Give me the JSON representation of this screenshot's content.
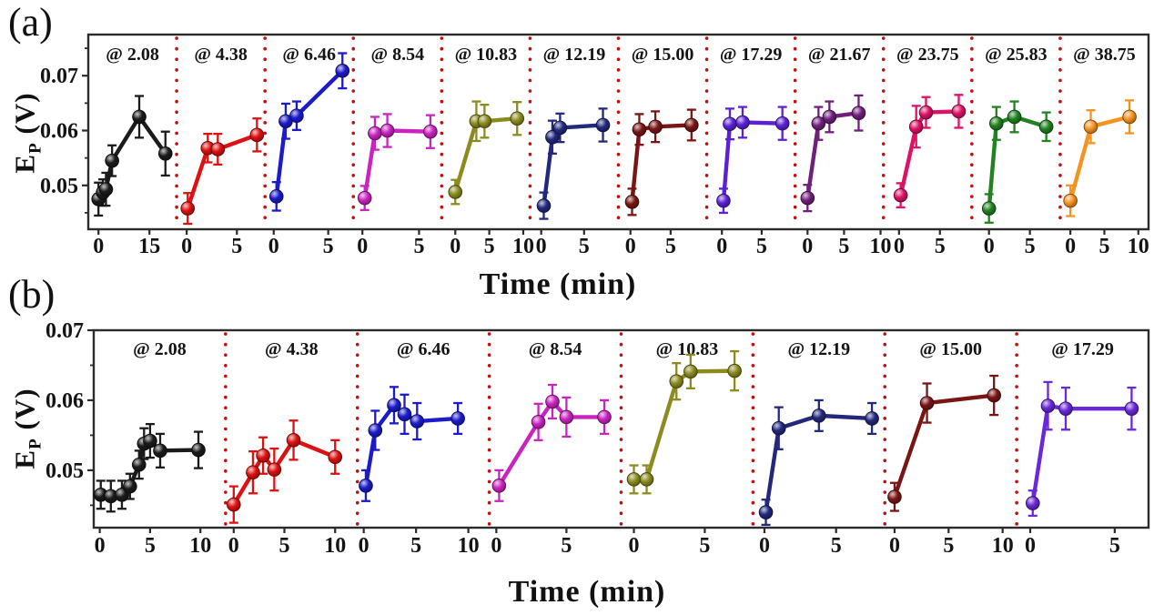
{
  "figure": {
    "panel_a_letter": "(a)",
    "panel_b_letter": "(b)"
  },
  "axis": {
    "ylabel_base": "E",
    "ylabel_sub": "P",
    "ylabel_unit": " (V)",
    "xlabel": "Time (min)"
  },
  "colors": {
    "separator": "#c01010",
    "frame": "#2b2b2b",
    "text": "#141414"
  },
  "chart_data": [
    {
      "type": "line",
      "panel": "a",
      "xlabel": "Time (min)",
      "ylabel": "E_P (V)",
      "ylim": [
        0.042,
        0.0775
      ],
      "yticks": [
        0.05,
        0.06,
        0.07
      ],
      "ytick_labels": [
        "0.05",
        "0.06",
        "0.07"
      ],
      "yticks_minor": [
        0.045,
        0.055,
        0.065,
        0.075
      ],
      "grid": false,
      "legend": "none",
      "subplots": [
        {
          "label": "@ 2.08",
          "color": "#1b1b1b",
          "xlim": [
            -3.0,
            23.0
          ],
          "xticks": [
            0,
            15
          ],
          "x": [
            0,
            1.3,
            2.2,
            4,
            12,
            19.7
          ],
          "y": [
            0.0475,
            0.0487,
            0.0493,
            0.0545,
            0.0625,
            0.0558
          ],
          "err": [
            0.003,
            0.0024,
            0.003,
            0.0028,
            0.0038,
            0.004
          ]
        },
        {
          "label": "@ 4.38",
          "color": "#dd1111",
          "xlim": [
            -1.0,
            7.8
          ],
          "xticks": [
            0,
            5
          ],
          "x": [
            0.1,
            2.1,
            3.1,
            7.0
          ],
          "y": [
            0.0458,
            0.0568,
            0.0566,
            0.0592
          ],
          "err": [
            0.0028,
            0.0026,
            0.0028,
            0.003
          ]
        },
        {
          "label": "@ 6.46",
          "color": "#1b1bcc",
          "xlim": [
            -0.8,
            7.3
          ],
          "xticks": [
            0,
            5
          ],
          "x": [
            0.25,
            1.1,
            2.1,
            6.3
          ],
          "y": [
            0.048,
            0.0617,
            0.0627,
            0.0709
          ],
          "err": [
            0.0026,
            0.0032,
            0.0026,
            0.0032
          ]
        },
        {
          "label": "@ 8.54",
          "color": "#c924c0",
          "xlim": [
            -0.8,
            7.0
          ],
          "xticks": [
            0,
            5
          ],
          "x": [
            0.2,
            1.1,
            2.2,
            6.0
          ],
          "y": [
            0.0477,
            0.0595,
            0.06,
            0.0598
          ],
          "err": [
            0.0022,
            0.003,
            0.003,
            0.003
          ]
        },
        {
          "label": "@ 10.83",
          "color": "#8b8b1f",
          "xlim": [
            -2.0,
            11.0
          ],
          "xticks": [
            0,
            5,
            10
          ],
          "x": [
            0,
            3.1,
            4.3,
            9.1
          ],
          "y": [
            0.0488,
            0.0617,
            0.0617,
            0.0622
          ],
          "err": [
            0.0022,
            0.0036,
            0.003,
            0.003
          ]
        },
        {
          "label": "@ 12.19",
          "color": "#23287d",
          "xlim": [
            -1.3,
            9.0
          ],
          "xticks": [
            0,
            5
          ],
          "x": [
            0.3,
            1.3,
            2.2,
            7.2
          ],
          "y": [
            0.0463,
            0.0588,
            0.0605,
            0.061
          ],
          "err": [
            0.0024,
            0.003,
            0.0026,
            0.003
          ]
        },
        {
          "label": "@ 15.00",
          "color": "#7a1515",
          "xlim": [
            -1.5,
            9.5
          ],
          "xticks": [
            0,
            5
          ],
          "x": [
            0.2,
            1.1,
            3.1,
            7.6
          ],
          "y": [
            0.047,
            0.0602,
            0.0607,
            0.061
          ],
          "err": [
            0.0024,
            0.0028,
            0.0028,
            0.0028
          ]
        },
        {
          "label": "@ 17.29",
          "color": "#5c21d6",
          "xlim": [
            -1.9,
            9.2
          ],
          "xticks": [
            0,
            5
          ],
          "x": [
            0.2,
            1.0,
            2.6,
            7.6
          ],
          "y": [
            0.0472,
            0.0612,
            0.0615,
            0.0613
          ],
          "err": [
            0.0022,
            0.0028,
            0.0028,
            0.003
          ]
        },
        {
          "label": "@ 21.67",
          "color": "#70207c",
          "xlim": [
            -1.7,
            10.4
          ],
          "xticks": [
            0,
            5,
            10
          ],
          "x": [
            0,
            1.5,
            3.0,
            7.0
          ],
          "y": [
            0.0477,
            0.0613,
            0.0625,
            0.0632
          ],
          "err": [
            0.0024,
            0.003,
            0.0028,
            0.0032
          ]
        },
        {
          "label": "@ 23.75",
          "color": "#dd1166",
          "xlim": [
            -1.9,
            8.9
          ],
          "xticks": [
            0,
            5
          ],
          "x": [
            0.2,
            2.1,
            3.3,
            7.3
          ],
          "y": [
            0.0482,
            0.0607,
            0.0633,
            0.0635
          ],
          "err": [
            0.0022,
            0.0038,
            0.0028,
            0.003
          ]
        },
        {
          "label": "@ 25.83",
          "color": "#218221",
          "xlim": [
            -2.1,
            8.7
          ],
          "xticks": [
            0,
            5
          ],
          "x": [
            0,
            0.9,
            3.1,
            7.0
          ],
          "y": [
            0.0458,
            0.0613,
            0.0625,
            0.0607
          ],
          "err": [
            0.0026,
            0.003,
            0.0028,
            0.0026
          ]
        },
        {
          "label": "@ 38.75",
          "color": "#f59320",
          "xlim": [
            -1.5,
            11.5
          ],
          "xticks": [
            0,
            5,
            10
          ],
          "x": [
            0,
            3.0,
            8.7
          ],
          "y": [
            0.0472,
            0.0607,
            0.0625
          ],
          "err": [
            0.0028,
            0.003,
            0.003
          ]
        }
      ]
    },
    {
      "type": "line",
      "panel": "b",
      "xlabel": "Time (min)",
      "ylabel": "E_P (V)",
      "ylim": [
        0.0418,
        0.07
      ],
      "yticks": [
        0.05,
        0.06,
        0.07
      ],
      "ytick_labels": [
        "0.05",
        "0.06",
        "0.07"
      ],
      "yticks_minor": [
        0.045,
        0.055,
        0.065
      ],
      "grid": false,
      "legend": "none",
      "subplots": [
        {
          "label": "@ 2.08",
          "color": "#1b1b1b",
          "xlim": [
            -0.6,
            12.5
          ],
          "xticks": [
            0,
            5,
            10
          ],
          "x": [
            0.1,
            1.1,
            2.2,
            3.0,
            3.9,
            4.4,
            5.0,
            6.0,
            9.8
          ],
          "y": [
            0.0465,
            0.0463,
            0.0465,
            0.0477,
            0.0508,
            0.0538,
            0.0542,
            0.0528,
            0.0529
          ],
          "err": [
            0.002,
            0.0022,
            0.002,
            0.0018,
            0.002,
            0.0022,
            0.0024,
            0.0024,
            0.0026
          ]
        },
        {
          "label": "@ 4.38",
          "color": "#dd1111",
          "xlim": [
            -0.8,
            12.2
          ],
          "xticks": [
            0,
            5,
            10
          ],
          "x": [
            0,
            1.9,
            2.9,
            4.0,
            5.9,
            10.0
          ],
          "y": [
            0.0451,
            0.0497,
            0.0521,
            0.0501,
            0.0543,
            0.0519
          ],
          "err": [
            0.0026,
            0.003,
            0.0026,
            0.003,
            0.0028,
            0.0024
          ]
        },
        {
          "label": "@ 6.46",
          "color": "#1b1bcc",
          "xlim": [
            -0.6,
            12.0
          ],
          "xticks": [
            0,
            5,
            10
          ],
          "x": [
            0.2,
            1.1,
            2.9,
            3.9,
            5.1,
            9.0
          ],
          "y": [
            0.0478,
            0.0557,
            0.0593,
            0.058,
            0.057,
            0.0574
          ],
          "err": [
            0.0022,
            0.0028,
            0.0026,
            0.0028,
            0.0026,
            0.0022
          ]
        },
        {
          "label": "@ 8.54",
          "color": "#c924c0",
          "xlim": [
            -0.5,
            8.9
          ],
          "xticks": [
            0,
            5
          ],
          "x": [
            0.2,
            3.0,
            4.0,
            5.0,
            7.7
          ],
          "y": [
            0.0478,
            0.0569,
            0.0598,
            0.0576,
            0.0576
          ],
          "err": [
            0.0022,
            0.0026,
            0.0024,
            0.0028,
            0.0024
          ]
        },
        {
          "label": "@ 10.83",
          "color": "#8b8b1f",
          "xlim": [
            -0.9,
            8.4
          ],
          "xticks": [
            0,
            5
          ],
          "x": [
            0,
            0.9,
            3.0,
            4.0,
            7.1
          ],
          "y": [
            0.0487,
            0.0487,
            0.0627,
            0.0641,
            0.0642
          ],
          "err": [
            0.002,
            0.002,
            0.0026,
            0.0024,
            0.0028
          ]
        },
        {
          "label": "@ 12.19",
          "color": "#23287d",
          "xlim": [
            -0.8,
            8.4
          ],
          "xticks": [
            0,
            5
          ],
          "x": [
            0.1,
            1.0,
            3.8,
            7.5
          ],
          "y": [
            0.044,
            0.056,
            0.0578,
            0.0574
          ],
          "err": [
            0.0018,
            0.003,
            0.0022,
            0.0022
          ]
        },
        {
          "label": "@ 15.00",
          "color": "#7a1515",
          "xlim": [
            -0.9,
            11.3
          ],
          "xticks": [
            0,
            5,
            10
          ],
          "x": [
            0,
            3.0,
            9.2
          ],
          "y": [
            0.0462,
            0.0596,
            0.0607
          ],
          "err": [
            0.002,
            0.0028,
            0.0028
          ]
        },
        {
          "label": "@ 17.29",
          "color": "#6a28d8",
          "xlim": [
            -0.8,
            7.0
          ],
          "xticks": [
            0,
            5
          ],
          "x": [
            0.15,
            1.05,
            2.1,
            6.0
          ],
          "y": [
            0.0453,
            0.0592,
            0.0588,
            0.0588
          ],
          "err": [
            0.0018,
            0.0034,
            0.003,
            0.003
          ]
        }
      ]
    }
  ]
}
